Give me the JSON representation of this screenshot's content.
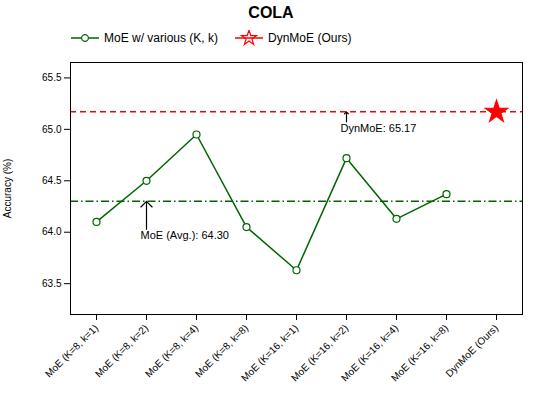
{
  "chart_data": {
    "type": "line",
    "title": "COLA",
    "y_label": "Accuracy (%)",
    "categories": [
      "MoE (K=8, k=1)",
      "MoE (K=8, k=2)",
      "MoE (K=8, k=4)",
      "MoE (K=8, k=8)",
      "MoE (K=16, k=1)",
      "MoE (K=16, k=2)",
      "MoE (K=16, k=4)",
      "MoE (K=16, k=8)",
      "DynMoE (Ours)"
    ],
    "series": [
      {
        "name": "MoE w/ various (K, k)",
        "color": "#006400",
        "marker": "circle",
        "line_style": "solid",
        "values": [
          64.1,
          64.5,
          64.95,
          64.05,
          63.63,
          64.72,
          64.13,
          64.37,
          null
        ]
      },
      {
        "name": "DynMoE (Ours)",
        "color": "#ff0000",
        "marker": "star",
        "line_style": "none",
        "values": [
          null,
          null,
          null,
          null,
          null,
          null,
          null,
          null,
          65.17
        ]
      }
    ],
    "reference_lines": [
      {
        "value": 64.3,
        "color": "#006400",
        "line_style": "dashdot"
      },
      {
        "value": 65.17,
        "color": "#ff0000",
        "line_style": "dashed"
      }
    ],
    "annotations": [
      {
        "text": "MoE (Avg.): 64.30",
        "x": "MoE (K=8, k=2)",
        "y": 64.3
      },
      {
        "text": "DynMoE: 65.17",
        "x": "MoE (K=16, k=2)",
        "y": 65.17
      }
    ],
    "ylim": [
      63.2,
      65.65
    ],
    "yticks": [
      63.5,
      {
        "value": 64.0,
        "label": "64.0"
      },
      64.5,
      {
        "value": 65.0,
        "label": "65.0"
      },
      65.5
    ],
    "legend": "upper left",
    "grid": false
  }
}
